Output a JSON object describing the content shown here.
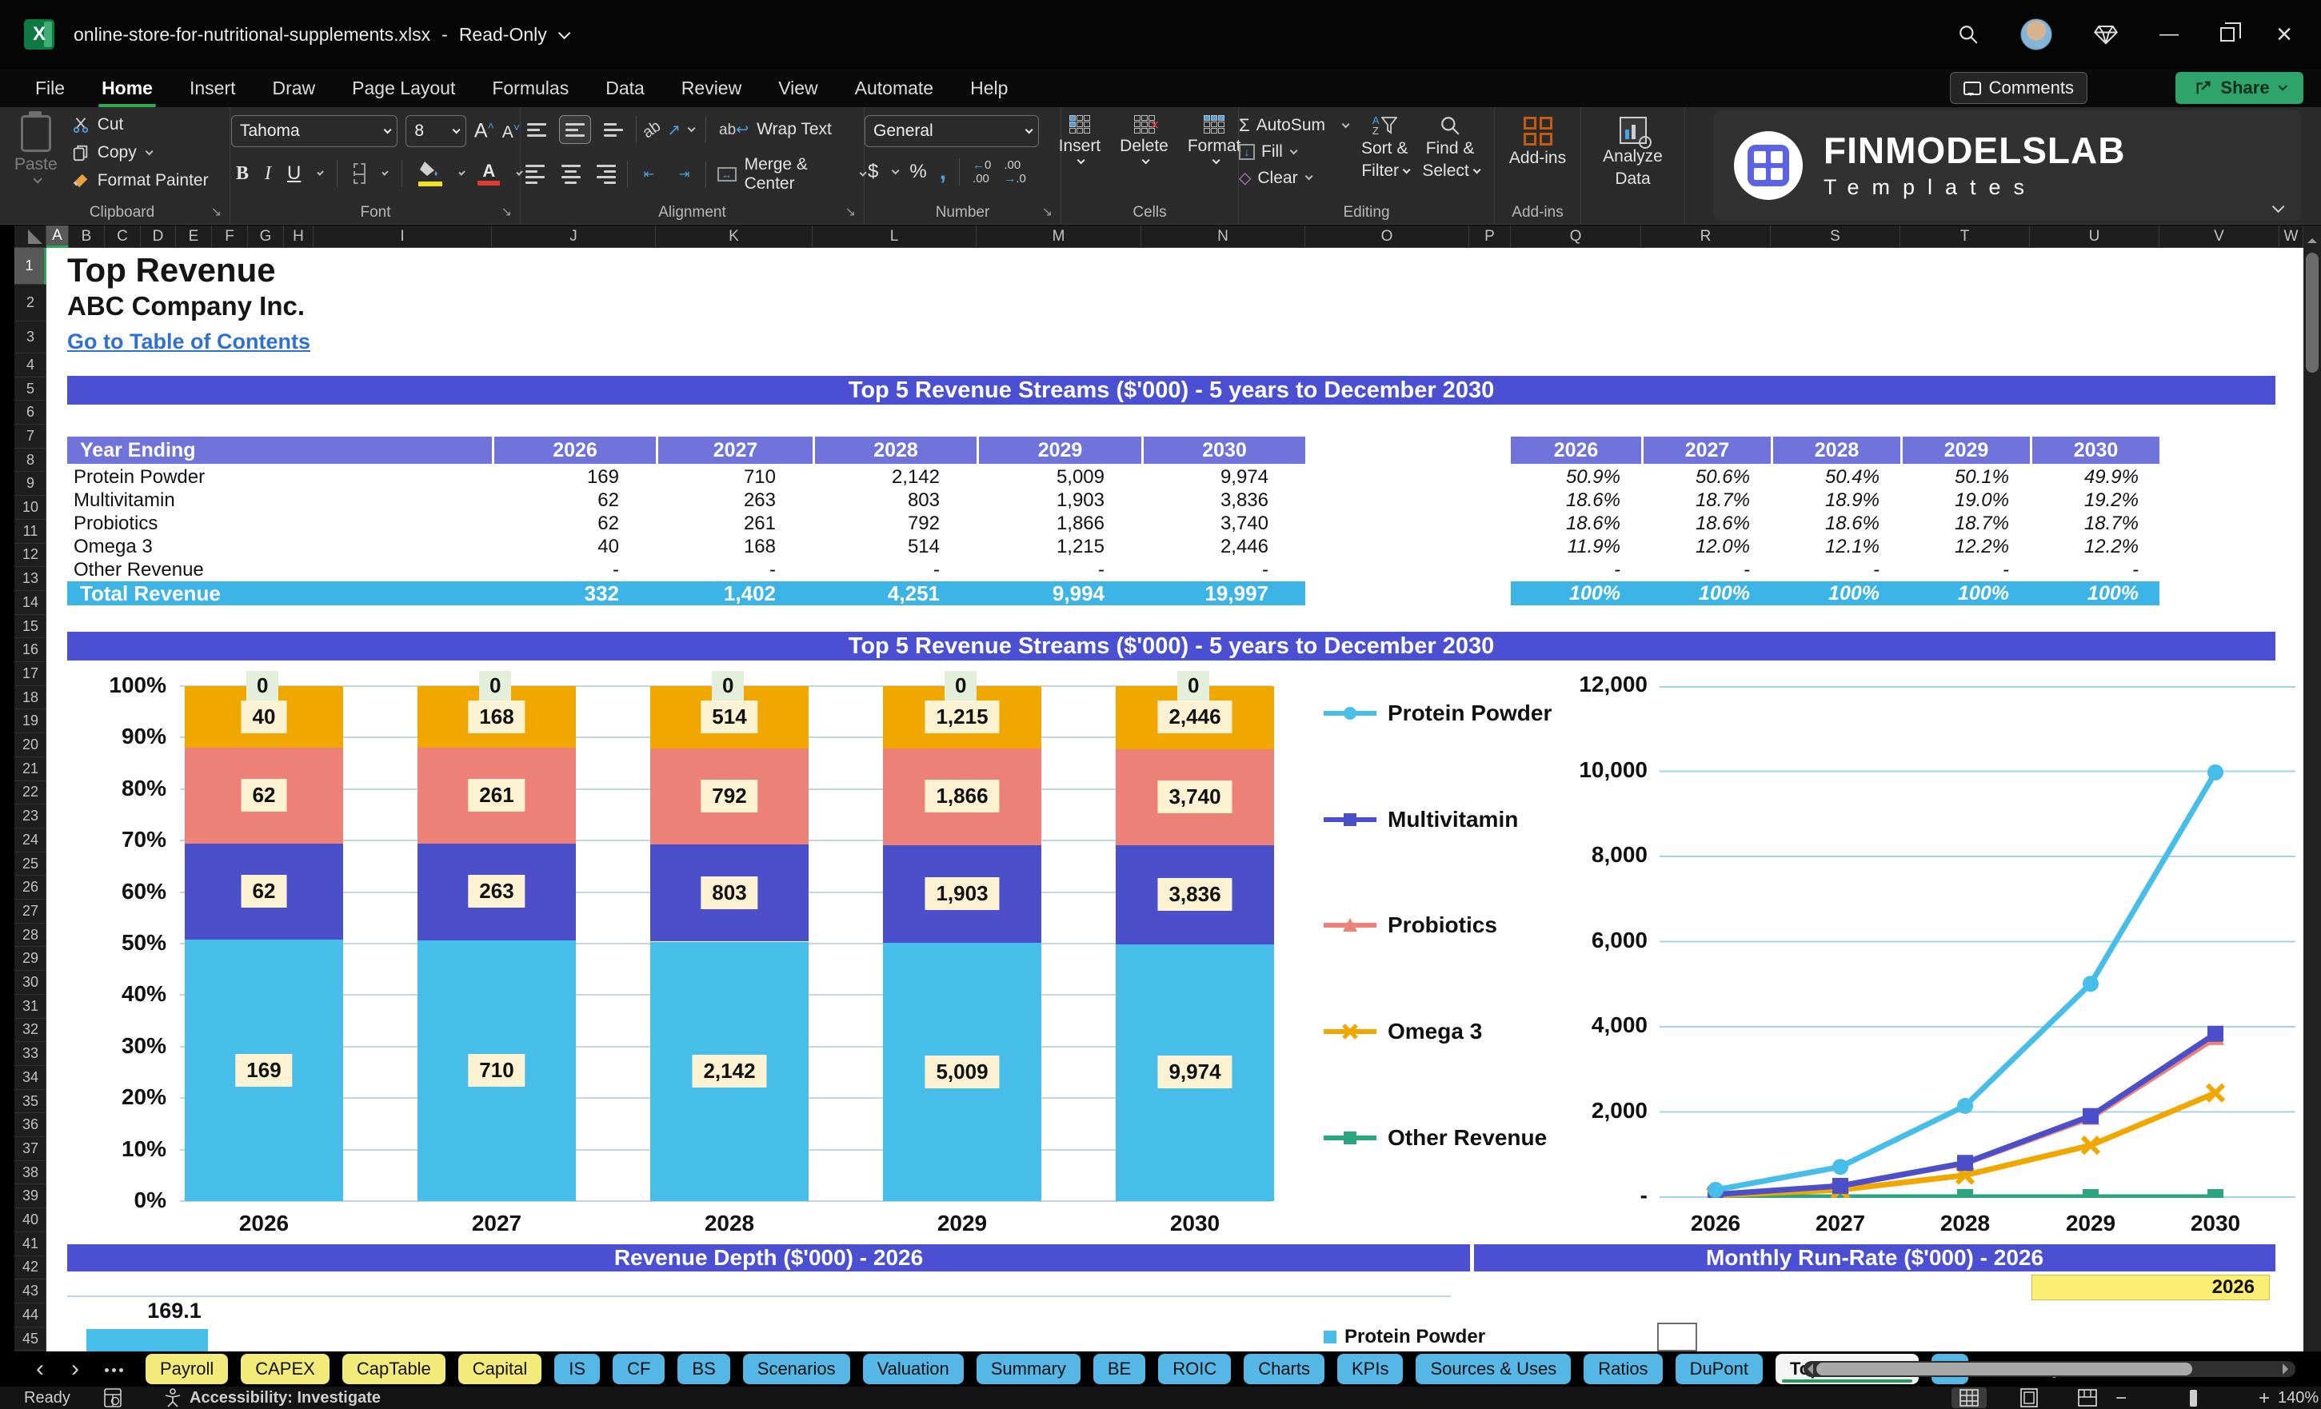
{
  "window": {
    "filename": "online-store-for-nutritional-supplements.xlsx",
    "separator": "-",
    "mode": "Read-Only"
  },
  "menu": {
    "tabs": [
      "File",
      "Home",
      "Insert",
      "Draw",
      "Page Layout",
      "Formulas",
      "Data",
      "Review",
      "View",
      "Automate",
      "Help"
    ],
    "active_tab": "Home",
    "comments": "Comments",
    "share": "Share"
  },
  "ribbon": {
    "clipboard": {
      "paste": "Paste",
      "cut": "Cut",
      "copy": "Copy",
      "format_painter": "Format Painter",
      "group": "Clipboard"
    },
    "font": {
      "family": "Tahoma",
      "size": "8",
      "group": "Font"
    },
    "alignment": {
      "wrap_text": "Wrap Text",
      "merge_center": "Merge & Center",
      "group": "Alignment"
    },
    "number": {
      "format": "General",
      "group": "Number"
    },
    "cells": {
      "insert": "Insert",
      "delete": "Delete",
      "format": "Format",
      "group": "Cells"
    },
    "editing": {
      "autosum": "AutoSum",
      "fill": "Fill",
      "clear": "Clear",
      "sort_filter_1": "Sort &",
      "sort_filter_2": "Filter",
      "find_select_1": "Find &",
      "find_select_2": "Select",
      "group": "Editing"
    },
    "addins": {
      "label": "Add-ins",
      "analyze_1": "Analyze",
      "analyze_2": "Data",
      "group": "Add-ins"
    },
    "brand": {
      "name": "FINMODELSLAB",
      "subtitle": "Templates"
    }
  },
  "glyphs": {
    "autosum": "Σ",
    "clear": "◇",
    "currency": "$",
    "percent": "%",
    "comma": ",",
    "bold": "B",
    "italic": "I",
    "underline": "U",
    "font_grow": "A",
    "font_shrink": "A",
    "nav_prev": "‹",
    "nav_next": "›",
    "add_sheet": "+",
    "minimize": "—",
    "close": "×",
    "orientation": "ab"
  },
  "grid": {
    "columns": [
      "A",
      "B",
      "C",
      "D",
      "E",
      "F",
      "G",
      "H",
      "I",
      "J",
      "K",
      "L",
      "M",
      "N",
      "O",
      "P",
      "Q",
      "R",
      "S",
      "T",
      "U",
      "V",
      "W"
    ],
    "rows": [
      "1",
      "2",
      "3",
      "4",
      "5",
      "6",
      "7",
      "8",
      "9",
      "10",
      "11",
      "12",
      "13",
      "14",
      "15",
      "16",
      "17",
      "18",
      "19",
      "20",
      "21",
      "22",
      "23",
      "24",
      "25",
      "26",
      "27",
      "28",
      "29",
      "30",
      "31",
      "32",
      "33",
      "34",
      "35",
      "36",
      "37",
      "38",
      "39",
      "40",
      "41",
      "42",
      "43",
      "44",
      "45"
    ]
  },
  "sheet": {
    "title": "Top Revenue",
    "company": "ABC Company Inc.",
    "toc_link": "Go to Table of Contents",
    "banner_top": "Top 5 Revenue Streams ($'000) - 5 years to December 2030",
    "banner_chart": "Top 5 Revenue Streams ($'000) - 5 years to December 2030",
    "banner_depth": "Revenue Depth ($'000) - 2026",
    "banner_runrate": "Monthly Run-Rate ($'000) - 2026",
    "runrate_year": "2026",
    "depth_first_label": "169.1",
    "runrate_legend": "Protein Powder",
    "table": {
      "header": [
        "Year Ending",
        "2026",
        "2027",
        "2028",
        "2029",
        "2030"
      ],
      "rows": [
        [
          "Protein Powder",
          "169",
          "710",
          "2,142",
          "5,009",
          "9,974"
        ],
        [
          "Multivitamin",
          "62",
          "263",
          "803",
          "1,903",
          "3,836"
        ],
        [
          "Probiotics",
          "62",
          "261",
          "792",
          "1,866",
          "3,740"
        ],
        [
          "Omega 3",
          "40",
          "168",
          "514",
          "1,215",
          "2,446"
        ],
        [
          "Other Revenue",
          "-",
          "-",
          "-",
          "-",
          "-"
        ]
      ],
      "total": [
        "Total Revenue",
        "332",
        "1,402",
        "4,251",
        "9,994",
        "19,997"
      ]
    },
    "pct_table": {
      "header": [
        "2026",
        "2027",
        "2028",
        "2029",
        "2030"
      ],
      "rows": [
        [
          "50.9%",
          "50.6%",
          "50.4%",
          "50.1%",
          "49.9%"
        ],
        [
          "18.6%",
          "18.7%",
          "18.9%",
          "19.0%",
          "19.2%"
        ],
        [
          "18.6%",
          "18.6%",
          "18.6%",
          "18.7%",
          "18.7%"
        ],
        [
          "11.9%",
          "12.0%",
          "12.1%",
          "12.2%",
          "12.2%"
        ],
        [
          "-",
          "-",
          "-",
          "-",
          "-"
        ]
      ],
      "total": [
        "100%",
        "100%",
        "100%",
        "100%",
        "100%"
      ]
    }
  },
  "chart_data": [
    {
      "type": "bar",
      "subtype": "percent-stacked",
      "title": "Top 5 Revenue Streams ($'000) - 5 years to December 2030",
      "categories": [
        "2026",
        "2027",
        "2028",
        "2029",
        "2030"
      ],
      "series": [
        {
          "name": "Protein Powder",
          "color": "#47bde9",
          "marker": "circle",
          "values": [
            169,
            710,
            2142,
            5009,
            9974
          ]
        },
        {
          "name": "Multivitamin",
          "color": "#4b50ca",
          "marker": "square",
          "values": [
            62,
            263,
            803,
            1903,
            3836
          ]
        },
        {
          "name": "Probiotics",
          "color": "#ee8177",
          "marker": "triangle",
          "values": [
            62,
            261,
            792,
            1866,
            3740
          ]
        },
        {
          "name": "Omega 3",
          "color": "#f0a800",
          "marker": "x",
          "values": [
            40,
            168,
            514,
            1215,
            2446
          ]
        },
        {
          "name": "Other Revenue",
          "color": "#2aa57f",
          "marker": "square",
          "values": [
            0,
            0,
            0,
            0,
            0
          ]
        }
      ],
      "yticks": [
        "100%",
        "90%",
        "80%",
        "70%",
        "60%",
        "50%",
        "40%",
        "30%",
        "20%",
        "10%",
        "0%"
      ],
      "grid": true,
      "legend_position": "right"
    },
    {
      "type": "line",
      "categories": [
        "2026",
        "2027",
        "2028",
        "2029",
        "2030"
      ],
      "ylim": [
        0,
        12000
      ],
      "yticks": [
        "12,000",
        "10,000",
        "8,000",
        "6,000",
        "4,000",
        "2,000",
        "-"
      ],
      "grid": true,
      "series": [
        {
          "name": "Protein Powder",
          "color": "#47bde9",
          "marker": "circle",
          "values": [
            169,
            710,
            2142,
            5009,
            9974
          ]
        },
        {
          "name": "Multivitamin",
          "color": "#4b50ca",
          "marker": "square",
          "values": [
            62,
            263,
            803,
            1903,
            3836
          ]
        },
        {
          "name": "Probiotics",
          "color": "#ee8177",
          "marker": "triangle",
          "values": [
            62,
            261,
            792,
            1866,
            3740
          ]
        },
        {
          "name": "Omega 3",
          "color": "#f0a800",
          "marker": "x",
          "values": [
            40,
            168,
            514,
            1215,
            2446
          ]
        },
        {
          "name": "Other Revenue",
          "color": "#2aa57f",
          "marker": "square",
          "values": [
            0,
            0,
            0,
            0,
            0
          ]
        }
      ]
    }
  ],
  "tabs": {
    "sheets": [
      {
        "label": "Payroll",
        "color": "yellow"
      },
      {
        "label": "CAPEX",
        "color": "yellow"
      },
      {
        "label": "CapTable",
        "color": "yellow"
      },
      {
        "label": "Capital",
        "color": "yellow"
      },
      {
        "label": "IS",
        "color": "blue"
      },
      {
        "label": "CF",
        "color": "blue"
      },
      {
        "label": "BS",
        "color": "blue"
      },
      {
        "label": "Scenarios",
        "color": "blue"
      },
      {
        "label": "Valuation",
        "color": "blue"
      },
      {
        "label": "Summary",
        "color": "blue"
      },
      {
        "label": "BE",
        "color": "blue"
      },
      {
        "label": "ROIC",
        "color": "blue"
      },
      {
        "label": "Charts",
        "color": "blue"
      },
      {
        "label": "KPIs",
        "color": "blue"
      },
      {
        "label": "Sources & Uses",
        "color": "blue"
      },
      {
        "label": "Ratios",
        "color": "blue"
      },
      {
        "label": "DuPont",
        "color": "blue"
      },
      {
        "label": "Top_Revenue",
        "color": "active"
      },
      {
        "label": "To",
        "color": "blue",
        "partial": true
      }
    ]
  },
  "status": {
    "ready": "Ready",
    "accessibility": "Accessibility: Investigate",
    "zoom": "140%"
  }
}
